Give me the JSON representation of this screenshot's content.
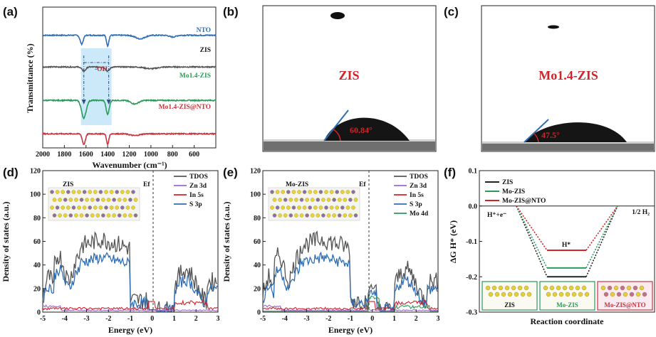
{
  "panel_labels": [
    "(a)",
    "(b)",
    "(c)",
    "(d)",
    "(e)",
    "(f)"
  ],
  "colors": {
    "nto": "#2f6db5",
    "zis": "#555555",
    "mozis": "#2a9a5a",
    "moznto": "#c8323c",
    "red": "#d2232a",
    "drop": "#111111"
  },
  "chart_data": [
    {
      "panel": "a",
      "type": "line",
      "xlabel": "Wavenumber (cm⁻¹)",
      "ylabel": "Transmittance (%)",
      "xlim": [
        2000,
        400
      ],
      "xticks": [
        "2000",
        "1800",
        "1600",
        "1400",
        "1200",
        "1000",
        "800",
        "600"
      ],
      "annotation": "-OH",
      "highlight_range": [
        1620,
        1390
      ],
      "series": [
        {
          "name": "NTO",
          "color": "#2f6db5",
          "offset": 3.2,
          "dips": [
            [
              1640,
              0.25,
              20
            ],
            [
              1400,
              0.3,
              15
            ],
            [
              1100,
              0.1,
              60
            ],
            [
              800,
              0.05,
              40
            ]
          ]
        },
        {
          "name": "ZIS",
          "color": "#555555",
          "offset": 2.3,
          "dips": [
            [
              1620,
              0.12,
              25
            ],
            [
              1400,
              0.12,
              25
            ],
            [
              1000,
              0.05,
              80
            ]
          ]
        },
        {
          "name": "Mo1.4-ZIS",
          "color": "#2a9a5a",
          "offset": 1.35,
          "dips": [
            [
              1620,
              0.5,
              30
            ],
            [
              1400,
              0.4,
              20
            ],
            [
              1150,
              0.1,
              50
            ]
          ]
        },
        {
          "name": "Mo1.4-ZIS@NTO",
          "color": "#c8323c",
          "offset": 0.4,
          "dips": [
            [
              1620,
              0.3,
              20
            ],
            [
              1400,
              0.3,
              15
            ],
            [
              1150,
              0.05,
              60
            ]
          ]
        }
      ]
    },
    {
      "panel": "d",
      "type": "line",
      "xlabel": "Energy (eV)",
      "ylabel": "Density of states (a.u.)",
      "xlim": [
        -5,
        3
      ],
      "ylim": [
        0,
        120
      ],
      "xticks": [
        "-5",
        "-4",
        "-3",
        "-2",
        "-1",
        "0",
        "1",
        "2",
        "3"
      ],
      "yticks": [
        "0",
        "20",
        "40",
        "60",
        "80",
        "100",
        "120"
      ],
      "label": "ZIS",
      "fermi_label": "Ef",
      "series": [
        {
          "name": "TDOS",
          "color": "#555555"
        },
        {
          "name": "Zn 3d",
          "color": "#9a6ad0"
        },
        {
          "name": "In 5s",
          "color": "#d2232a"
        },
        {
          "name": "S 3p",
          "color": "#2f6db5"
        }
      ]
    },
    {
      "panel": "e",
      "type": "line",
      "xlabel": "Energy (eV)",
      "ylabel": "Density of states (a.u.)",
      "xlim": [
        -5,
        3
      ],
      "ylim": [
        0,
        120
      ],
      "xticks": [
        "-5",
        "-4",
        "-3",
        "-2",
        "-1",
        "0",
        "1",
        "2",
        "3"
      ],
      "yticks": [
        "0",
        "20",
        "40",
        "60",
        "80",
        "100",
        "120"
      ],
      "label": "Mo-ZIS",
      "fermi_label": "Ef",
      "series": [
        {
          "name": "TDOS",
          "color": "#555555"
        },
        {
          "name": "Zn 3d",
          "color": "#9a6ad0"
        },
        {
          "name": "In 5s",
          "color": "#d2232a"
        },
        {
          "name": "S 3p",
          "color": "#2f6db5"
        },
        {
          "name": "Mo 4d",
          "color": "#2a9a5a"
        }
      ]
    },
    {
      "panel": "f",
      "type": "line",
      "xlabel": "Reaction coordinate",
      "ylabel": "ΔG H* (eV)",
      "ylim": [
        -0.3,
        0.1
      ],
      "yticks": [
        "0.1",
        "0.0",
        "-0.1",
        "-0.2",
        "-0.3"
      ],
      "states": [
        "H⁺+e⁻",
        "H*",
        "1/2 H₂"
      ],
      "series": [
        {
          "name": "ZIS",
          "color": "#222222",
          "values": [
            0,
            -0.2,
            0
          ]
        },
        {
          "name": "Mo-ZIS",
          "color": "#2a9a5a",
          "values": [
            0,
            -0.175,
            0
          ]
        },
        {
          "name": "Mo-ZIS@NTO",
          "color": "#d2232a",
          "values": [
            0,
            -0.125,
            0
          ]
        }
      ],
      "insets": [
        "ZIS",
        "Mo-ZIS",
        "Mo-ZIS@NTO"
      ]
    }
  ],
  "contact_angle": {
    "b": {
      "label": "ZIS",
      "angle": "60.84°"
    },
    "c": {
      "label": "Mo1.4-ZIS",
      "angle": "47.5°"
    }
  }
}
